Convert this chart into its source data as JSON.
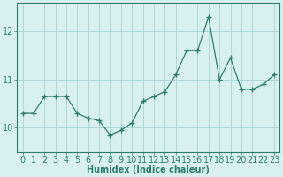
{
  "x": [
    0,
    1,
    2,
    3,
    4,
    5,
    6,
    7,
    8,
    9,
    10,
    11,
    12,
    13,
    14,
    15,
    16,
    17,
    18,
    19,
    20,
    21,
    22,
    23
  ],
  "y": [
    10.3,
    10.3,
    10.65,
    10.65,
    10.65,
    10.3,
    10.2,
    10.15,
    9.85,
    9.95,
    10.1,
    10.55,
    10.65,
    10.75,
    11.1,
    11.6,
    11.6,
    12.3,
    11.0,
    11.45,
    10.8,
    10.8,
    10.9,
    11.1
  ],
  "line_color": "#2d7d6e",
  "marker": "+",
  "marker_size": 4,
  "bg_color": "#d8f0f0",
  "grid_color": "#aad4d4",
  "xlabel": "Humidex (Indice chaleur)",
  "ylim": [
    9.5,
    12.6
  ],
  "yticks": [
    10,
    11,
    12
  ],
  "xtick_labels": [
    "0",
    "1",
    "2",
    "3",
    "4",
    "5",
    "6",
    "7",
    "8",
    "9",
    "10",
    "11",
    "12",
    "13",
    "14",
    "15",
    "16",
    "17",
    "18",
    "19",
    "20",
    "21",
    "22",
    "23"
  ],
  "xlabel_fontsize": 7,
  "tick_fontsize": 7,
  "line_width": 0.9
}
